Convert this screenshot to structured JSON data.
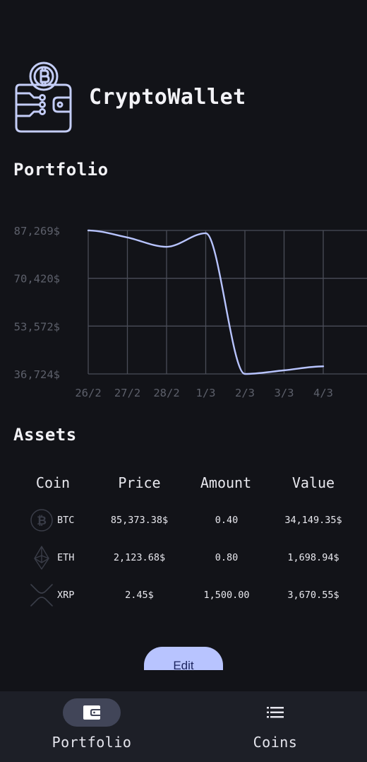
{
  "app": {
    "title": "CryptoWallet",
    "logo_icon": "crypto-wallet-icon"
  },
  "portfolio": {
    "section_title": "Portfolio",
    "chart_data": {
      "type": "line",
      "title": "",
      "xlabel": "",
      "ylabel": "",
      "categories": [
        "26/2",
        "27/2",
        "28/2",
        "1/3",
        "2/3",
        "3/3",
        "4/3"
      ],
      "y_ticks": [
        "87,269$",
        "70,420$",
        "53,572$",
        "36,724$"
      ],
      "ylim": [
        36724,
        87269
      ],
      "grid": true,
      "x": [
        "26/2",
        "27/2",
        "28/2",
        "1/3",
        "2/3",
        "3/3",
        "4/3"
      ],
      "series": [
        {
          "values": [
            87269,
            84800,
            81500,
            86300,
            36724,
            38000,
            39400
          ]
        }
      ],
      "colors": {
        "line": "#b8c4ff",
        "grid": "#4a4d58",
        "tick_label": "#5d606b"
      }
    }
  },
  "assets": {
    "section_title": "Assets",
    "columns": [
      "Coin",
      "Price",
      "Amount",
      "Value"
    ],
    "rows": [
      {
        "icon": "bitcoin-icon",
        "symbol": "BTC",
        "price": "85,373.38$",
        "amount": "0.40",
        "value": "34,149.35$"
      },
      {
        "icon": "ethereum-icon",
        "symbol": "ETH",
        "price": "2,123.68$",
        "amount": "0.80",
        "value": "1,698.94$"
      },
      {
        "icon": "xrp-icon",
        "symbol": "XRP",
        "price": "2.45$",
        "amount": "1,500.00",
        "value": "3,670.55$"
      }
    ]
  },
  "edit_button": {
    "label": "Edit"
  },
  "nav": {
    "items": [
      {
        "label": "Portfolio",
        "icon": "wallet-icon",
        "active": true
      },
      {
        "label": "Coins",
        "icon": "list-icon",
        "active": false
      }
    ]
  },
  "colors": {
    "background": "#121318",
    "accent": "#b8c4ff",
    "nav_background": "#1d1f27",
    "active_pill": "#414558"
  }
}
